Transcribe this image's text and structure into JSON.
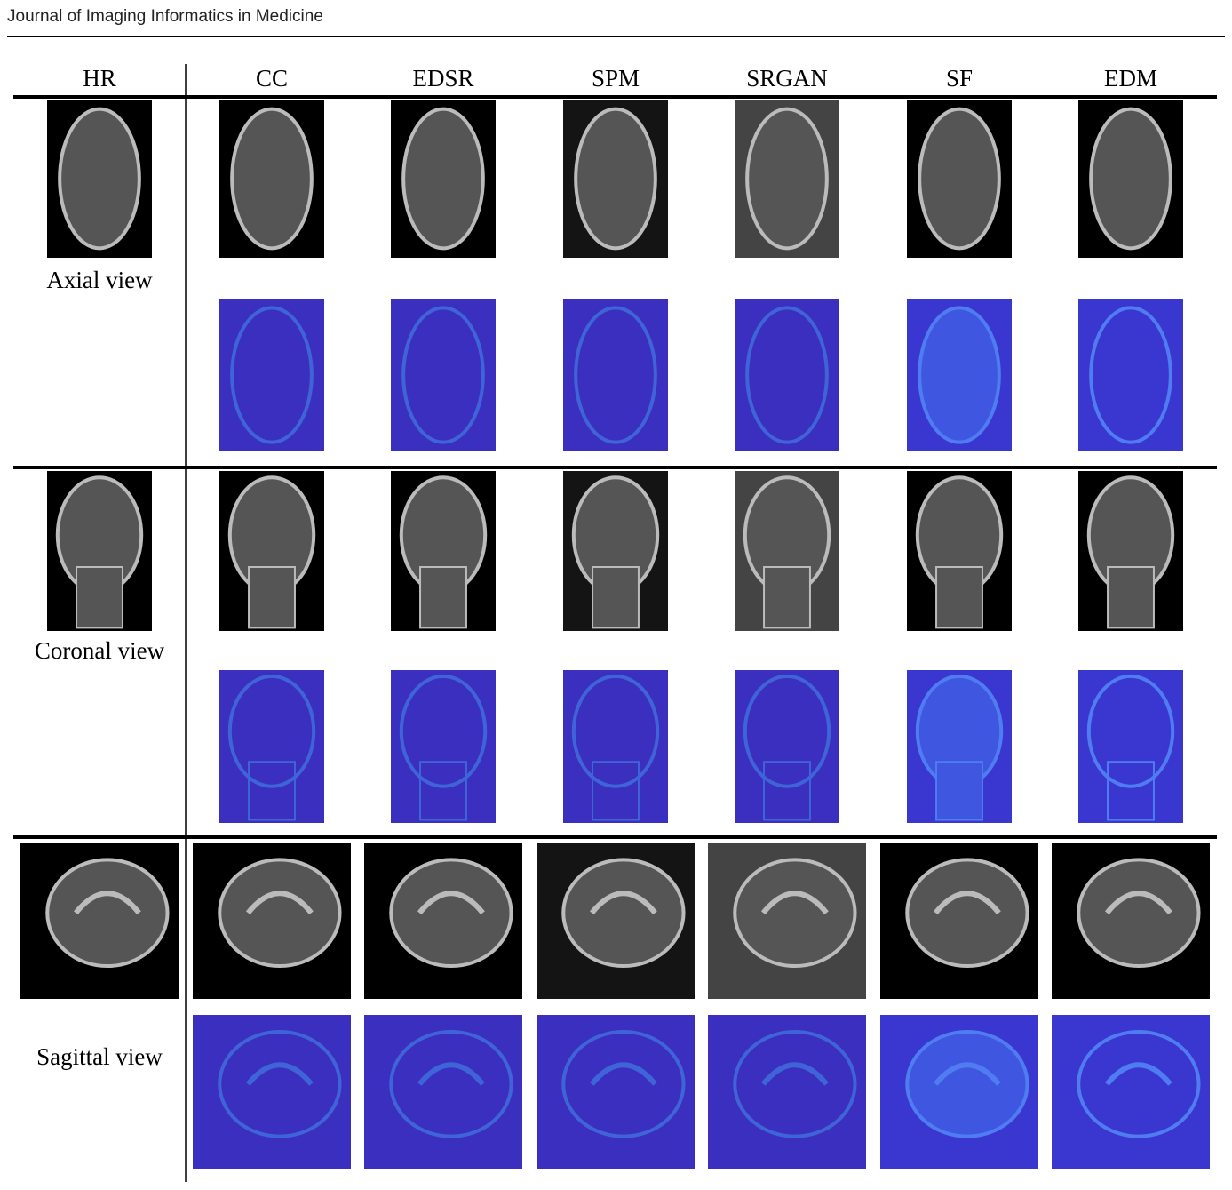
{
  "header": {
    "journal": "Journal of Imaging Informatics in Medicine"
  },
  "figure": {
    "columns": [
      "HR",
      "CC",
      "EDSR",
      "SPM",
      "SRGAN",
      "SF",
      "EDM"
    ],
    "rows": [
      "Axial view",
      "Coronal view",
      "Sagittal view"
    ]
  }
}
